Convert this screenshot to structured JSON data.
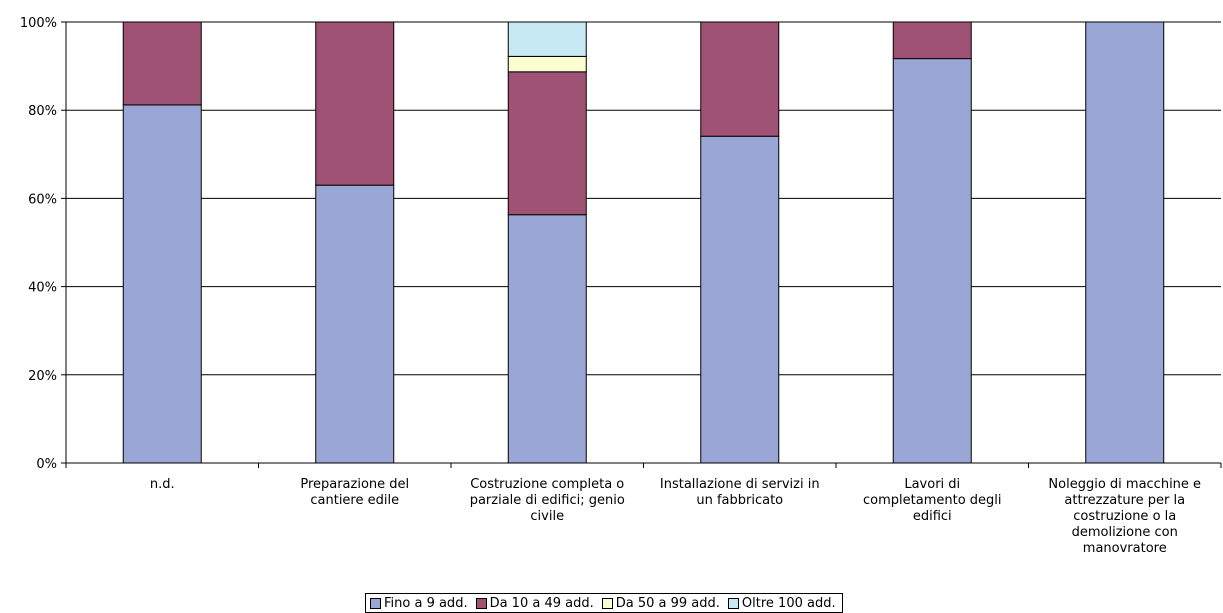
{
  "chart_data": {
    "type": "bar",
    "stacked": true,
    "percent": true,
    "categories": [
      "n.d.",
      "Preparazione del\ncantiere edile",
      "Costruzione completa o\nparziale di edifici; genio\ncivile",
      "Installazione di servizi in\nun fabbricato",
      "Lavori di\ncompletamento degli\nedifici",
      "Noleggio di macchine e\nattrezzature per la\ncostruzione o la\ndemolizione con\nmanovratore"
    ],
    "series": [
      {
        "name": "Fino a 9 add.",
        "color": "#9aa6d5",
        "values": [
          81.2,
          63.0,
          56.3,
          74.1,
          91.7,
          100
        ]
      },
      {
        "name": "Da 10 a 49 add.",
        "color": "#a05274",
        "values": [
          18.8,
          37.0,
          32.4,
          25.9,
          8.3,
          0
        ]
      },
      {
        "name": "Da 50 a 99 add.",
        "color": "#fdfdd2",
        "values": [
          0,
          0,
          3.5,
          0,
          0,
          0
        ]
      },
      {
        "name": "Oltre 100 add.",
        "color": "#c6e9f3",
        "values": [
          0,
          0,
          7.8,
          0,
          0,
          0
        ]
      }
    ],
    "y_ticks": [
      "0%",
      "20%",
      "40%",
      "60%",
      "80%",
      "100%"
    ],
    "ylim": [
      0,
      100
    ],
    "grid": true,
    "legend_position": "bottom"
  }
}
